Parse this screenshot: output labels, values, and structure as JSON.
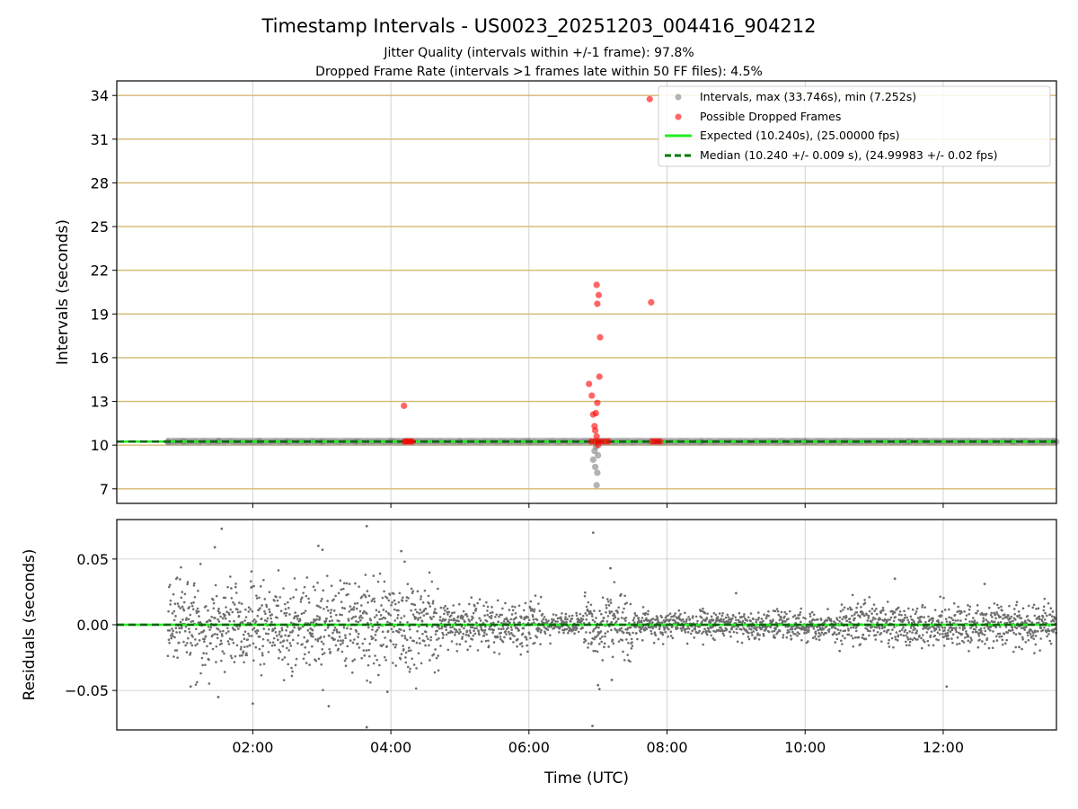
{
  "figure": {
    "title": "Timestamp Intervals - US0023_20251203_004416_904212",
    "subtitle_line1": "Jitter Quality (intervals within +/-1 frame): 97.8%",
    "subtitle_line2": "Dropped Frame Rate (intervals >1 frames late within 50 FF files): 4.5%"
  },
  "chart_data": [
    {
      "type": "scatter",
      "ylabel": "Intervals (seconds)",
      "ylim": [
        6.0,
        35.0
      ],
      "xlim_hours": [
        0.03,
        13.64
      ],
      "yticks": [
        7,
        10,
        13,
        16,
        19,
        22,
        25,
        28,
        31,
        34
      ],
      "ytick_labels": [
        "7",
        "10",
        "13",
        "16",
        "19",
        "22",
        "25",
        "28",
        "31",
        "34"
      ],
      "xticks_hours": [
        2,
        4,
        6,
        8,
        10,
        12
      ],
      "grid": true,
      "horizontal_gridline_color": "#d4b870",
      "legend_position": "top-right",
      "legend": [
        "Intervals, max (33.746s), min (7.252s)",
        "Possible Dropped Frames",
        "Expected (10.240s), (25.00000 fps)",
        "Median (10.240 +/- 0.009 s), (24.99983 +/- 0.02 fps)"
      ],
      "expected_interval": 10.24,
      "median_interval": 10.24,
      "series": [
        {
          "name": "Intervals, max (33.746s), min (7.252s)",
          "color": "#808080",
          "points": [
            [
              0.77,
              10.24
            ],
            [
              1.0,
              10.26
            ],
            [
              1.5,
              10.28
            ],
            [
              2.1,
              10.27
            ],
            [
              2.5,
              10.26
            ],
            [
              3.0,
              10.25
            ],
            [
              3.5,
              10.24
            ],
            [
              4.0,
              10.26
            ],
            [
              5.0,
              10.24
            ],
            [
              6.0,
              10.24
            ],
            [
              6.95,
              9.6
            ],
            [
              6.93,
              9.0
            ],
            [
              6.96,
              8.5
            ],
            [
              6.99,
              8.1
            ],
            [
              6.98,
              7.25
            ],
            [
              6.97,
              9.9
            ],
            [
              7.0,
              9.3
            ],
            [
              8.5,
              10.24
            ],
            [
              10.0,
              10.24
            ],
            [
              11.5,
              10.24
            ],
            [
              13.0,
              10.24
            ],
            [
              13.6,
              10.24
            ]
          ]
        },
        {
          "name": "Possible Dropped Frames",
          "color": "#ff0000",
          "points": [
            [
              4.19,
              12.7
            ],
            [
              4.2,
              10.25
            ],
            [
              4.22,
              10.25
            ],
            [
              4.25,
              10.25
            ],
            [
              4.28,
              10.25
            ],
            [
              4.31,
              10.25
            ],
            [
              6.87,
              14.2
            ],
            [
              6.91,
              13.4
            ],
            [
              6.93,
              12.1
            ],
            [
              6.95,
              11.3
            ],
            [
              6.96,
              11.0
            ],
            [
              6.97,
              12.2
            ],
            [
              6.98,
              10.6
            ],
            [
              6.99,
              12.9
            ],
            [
              7.0,
              10.0
            ],
            [
              6.98,
              21.0
            ],
            [
              7.01,
              20.3
            ],
            [
              6.99,
              19.7
            ],
            [
              7.03,
              17.4
            ],
            [
              7.02,
              14.7
            ],
            [
              7.77,
              19.8
            ],
            [
              7.75,
              33.75
            ],
            [
              6.9,
              10.25
            ],
            [
              6.95,
              10.25
            ],
            [
              7.0,
              10.25
            ],
            [
              7.05,
              10.25
            ],
            [
              7.1,
              10.25
            ],
            [
              7.15,
              10.25
            ],
            [
              7.78,
              10.25
            ],
            [
              7.82,
              10.25
            ],
            [
              7.86,
              10.25
            ],
            [
              7.9,
              10.25
            ]
          ]
        }
      ]
    },
    {
      "type": "scatter",
      "ylabel": "Residuals (seconds)",
      "xlabel": "Time (UTC)",
      "ylim": [
        -0.08,
        0.08
      ],
      "yticks": [
        0.05,
        0.0,
        -0.05
      ],
      "ytick_labels": [
        "0.05",
        "0.00",
        "−0.05"
      ],
      "xticks_hours": [
        2,
        4,
        6,
        8,
        10,
        12
      ],
      "xtick_labels": [
        "02:00",
        "04:00",
        "06:00",
        "08:00",
        "10:00",
        "12:00"
      ],
      "grid": true,
      "series": [
        {
          "name": "",
          "color": "#6e6e6e",
          "points": [
            [
              1.55,
              0.073
            ],
            [
              3.65,
              0.075
            ],
            [
              3.65,
              -0.078
            ],
            [
              6.92,
              -0.077
            ],
            [
              6.93,
              0.07
            ],
            [
              7.0,
              -0.046
            ],
            [
              7.02,
              -0.049
            ],
            [
              3.1,
              -0.062
            ],
            [
              2.0,
              -0.06
            ],
            [
              1.45,
              0.059
            ],
            [
              2.95,
              0.06
            ],
            [
              3.01,
              0.057
            ],
            [
              4.15,
              0.056
            ],
            [
              3.95,
              -0.051
            ],
            [
              1.1,
              -0.047
            ],
            [
              1.5,
              -0.055
            ],
            [
              7.2,
              -0.042
            ],
            [
              7.18,
              0.043
            ],
            [
              11.3,
              0.035
            ],
            [
              12.05,
              -0.047
            ],
            [
              9.0,
              0.024
            ],
            [
              10.5,
              -0.02
            ],
            [
              12.6,
              0.031
            ],
            [
              13.1,
              -0.017
            ]
          ]
        }
      ]
    }
  ]
}
